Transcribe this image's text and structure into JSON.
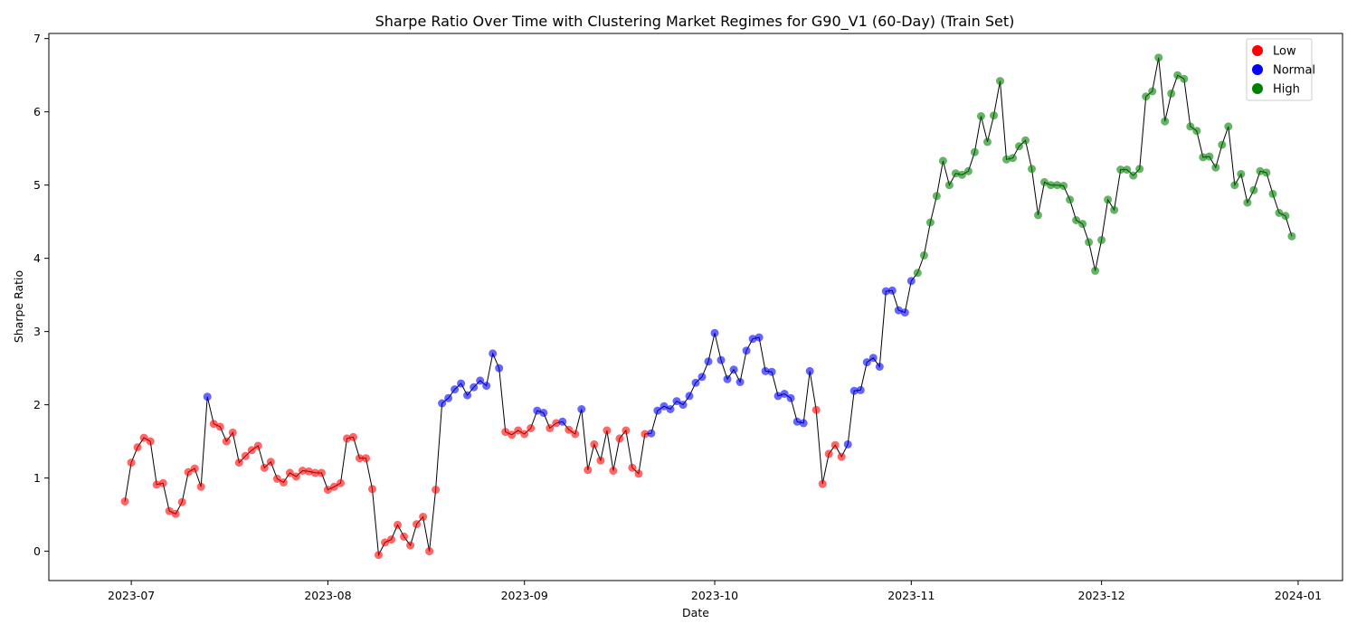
{
  "chart_data": {
    "type": "scatter",
    "title": "Sharpe Ratio Over Time with Clustering Market Regimes for G90_V1 (60-Day) (Train Set)",
    "xlabel": "Date",
    "ylabel": "Sharpe Ratio",
    "xlim": [
      "2023-06-18",
      "2024-01-08"
    ],
    "ylim": [
      -0.4,
      7.07
    ],
    "x_ticks": [
      "2023-07",
      "2023-08",
      "2023-09",
      "2023-10",
      "2023-11",
      "2023-12",
      "2024-01"
    ],
    "x_tick_dates": [
      "2023-07-01",
      "2023-08-01",
      "2023-09-01",
      "2023-10-01",
      "2023-11-01",
      "2023-12-01",
      "2024-01-01"
    ],
    "y_ticks": [
      0,
      1,
      2,
      3,
      4,
      5,
      6,
      7
    ],
    "grid": false,
    "legend_position": "top-right",
    "line_color": "#000000",
    "regimes": [
      {
        "key": "L",
        "name": "Low",
        "color": "#ff0000"
      },
      {
        "key": "N",
        "name": "Normal",
        "color": "#0000ff"
      },
      {
        "key": "H",
        "name": "High",
        "color": "#008000"
      }
    ],
    "x": [
      "2023-06-30",
      "2023-07-01",
      "2023-07-02",
      "2023-07-03",
      "2023-07-04",
      "2023-07-05",
      "2023-07-06",
      "2023-07-07",
      "2023-07-08",
      "2023-07-09",
      "2023-07-10",
      "2023-07-11",
      "2023-07-12",
      "2023-07-13",
      "2023-07-14",
      "2023-07-15",
      "2023-07-16",
      "2023-07-17",
      "2023-07-18",
      "2023-07-19",
      "2023-07-20",
      "2023-07-21",
      "2023-07-22",
      "2023-07-23",
      "2023-07-24",
      "2023-07-25",
      "2023-07-26",
      "2023-07-27",
      "2023-07-28",
      "2023-07-29",
      "2023-07-30",
      "2023-07-31",
      "2023-08-01",
      "2023-08-02",
      "2023-08-03",
      "2023-08-04",
      "2023-08-05",
      "2023-08-06",
      "2023-08-07",
      "2023-08-08",
      "2023-08-09",
      "2023-08-10",
      "2023-08-11",
      "2023-08-12",
      "2023-08-13",
      "2023-08-14",
      "2023-08-15",
      "2023-08-16",
      "2023-08-17",
      "2023-08-18",
      "2023-08-19",
      "2023-08-20",
      "2023-08-21",
      "2023-08-22",
      "2023-08-23",
      "2023-08-24",
      "2023-08-25",
      "2023-08-26",
      "2023-08-27",
      "2023-08-28",
      "2023-08-29",
      "2023-08-30",
      "2023-08-31",
      "2023-09-01",
      "2023-09-02",
      "2023-09-03",
      "2023-09-04",
      "2023-09-05",
      "2023-09-06",
      "2023-09-07",
      "2023-09-08",
      "2023-09-09",
      "2023-09-10",
      "2023-09-11",
      "2023-09-12",
      "2023-09-13",
      "2023-09-14",
      "2023-09-15",
      "2023-09-16",
      "2023-09-17",
      "2023-09-18",
      "2023-09-19",
      "2023-09-20",
      "2023-09-21",
      "2023-09-22",
      "2023-09-23",
      "2023-09-24",
      "2023-09-25",
      "2023-09-26",
      "2023-09-27",
      "2023-09-28",
      "2023-09-29",
      "2023-09-30",
      "2023-10-01",
      "2023-10-02",
      "2023-10-03",
      "2023-10-04",
      "2023-10-05",
      "2023-10-06",
      "2023-10-07",
      "2023-10-08",
      "2023-10-09",
      "2023-10-10",
      "2023-10-11",
      "2023-10-12",
      "2023-10-13",
      "2023-10-14",
      "2023-10-15",
      "2023-10-16",
      "2023-10-17",
      "2023-10-18",
      "2023-10-19",
      "2023-10-20",
      "2023-10-21",
      "2023-10-22",
      "2023-10-23",
      "2023-10-24",
      "2023-10-25",
      "2023-10-26",
      "2023-10-27",
      "2023-10-28",
      "2023-10-29",
      "2023-10-30",
      "2023-10-31",
      "2023-11-01",
      "2023-11-02",
      "2023-11-03",
      "2023-11-04",
      "2023-11-05",
      "2023-11-06",
      "2023-11-07",
      "2023-11-08",
      "2023-11-09",
      "2023-11-10",
      "2023-11-11",
      "2023-11-12",
      "2023-11-13",
      "2023-11-14",
      "2023-11-15",
      "2023-11-16",
      "2023-11-17",
      "2023-11-18",
      "2023-11-19",
      "2023-11-20",
      "2023-11-21",
      "2023-11-22",
      "2023-11-23",
      "2023-11-24",
      "2023-11-25",
      "2023-11-26",
      "2023-11-27",
      "2023-11-28",
      "2023-11-29",
      "2023-11-30",
      "2023-12-01",
      "2023-12-02",
      "2023-12-03",
      "2023-12-04",
      "2023-12-05",
      "2023-12-06",
      "2023-12-07",
      "2023-12-08",
      "2023-12-09",
      "2023-12-10",
      "2023-12-11",
      "2023-12-12",
      "2023-12-13",
      "2023-12-14",
      "2023-12-15",
      "2023-12-16",
      "2023-12-17",
      "2023-12-18",
      "2023-12-19",
      "2023-12-20",
      "2023-12-21",
      "2023-12-22",
      "2023-12-23",
      "2023-12-24",
      "2023-12-25",
      "2023-12-26",
      "2023-12-27",
      "2023-12-28",
      "2023-12-29",
      "2023-12-30",
      "2023-12-31"
    ],
    "values": [
      0.68,
      1.21,
      1.42,
      1.55,
      1.5,
      0.91,
      0.93,
      0.55,
      0.51,
      0.67,
      1.08,
      1.13,
      0.88,
      2.11,
      1.74,
      1.7,
      1.5,
      1.62,
      1.21,
      1.3,
      1.38,
      1.44,
      1.14,
      1.22,
      0.99,
      0.94,
      1.07,
      1.02,
      1.1,
      1.09,
      1.07,
      1.07,
      0.84,
      0.88,
      0.93,
      1.54,
      1.56,
      1.27,
      1.27,
      0.85,
      -0.05,
      0.12,
      0.16,
      0.36,
      0.2,
      0.08,
      0.37,
      0.47,
      0.0,
      0.84,
      2.02,
      2.09,
      2.21,
      2.29,
      2.13,
      2.24,
      2.33,
      2.26,
      2.7,
      2.5,
      1.63,
      1.59,
      1.65,
      1.6,
      1.68,
      1.92,
      1.89,
      1.68,
      1.75,
      1.77,
      1.66,
      1.6,
      1.94,
      1.11,
      1.46,
      1.24,
      1.65,
      1.1,
      1.54,
      1.65,
      1.14,
      1.06,
      1.6,
      1.61,
      1.92,
      1.98,
      1.94,
      2.05,
      2.0,
      2.12,
      2.3,
      2.38,
      2.59,
      2.98,
      2.61,
      2.35,
      2.48,
      2.31,
      2.74,
      2.9,
      2.92,
      2.46,
      2.45,
      2.12,
      2.15,
      2.09,
      1.77,
      1.75,
      2.46,
      1.93,
      0.92,
      1.33,
      1.45,
      1.29,
      1.46,
      2.19,
      2.2,
      2.58,
      2.64,
      2.52,
      3.55,
      3.56,
      3.29,
      3.26,
      3.69,
      3.8,
      4.04,
      4.49,
      4.85,
      5.33,
      5.0,
      5.16,
      5.14,
      5.19,
      5.45,
      5.94,
      5.59,
      5.95,
      6.42,
      5.35,
      5.37,
      5.53,
      5.61,
      5.22,
      4.59,
      5.04,
      5.0,
      5.0,
      4.99,
      4.8,
      4.52,
      4.47,
      4.22,
      3.83,
      4.25,
      4.8,
      4.66,
      5.21,
      5.21,
      5.13,
      5.22,
      6.21,
      6.28,
      6.74,
      5.87,
      6.25,
      6.5,
      6.45,
      5.8,
      5.74,
      5.38,
      5.39,
      5.24,
      5.55,
      5.8,
      5.0,
      5.15,
      4.76,
      4.93,
      5.19,
      5.17,
      4.88,
      4.62,
      4.58,
      4.3
    ],
    "regime_codes": "LLLLLLLLLLLLLNLLLLLLLLLLLLLLLLLLLLLLLLLLLLLLLLLLLLNNNNNNNNNNLLLLLNNLLNLLNLLLLLLLLLLNNNNNNNNNNNNNNNNNNNNNNNNNNLLLLLNNNNNNNNNNNHHHHHHHHHHHHHHHHHHHHHHHHHHHHHHHHHHHHHHHHHHHHHHHHHHHHHHHHHHHHHHHHHHHHH"
  }
}
